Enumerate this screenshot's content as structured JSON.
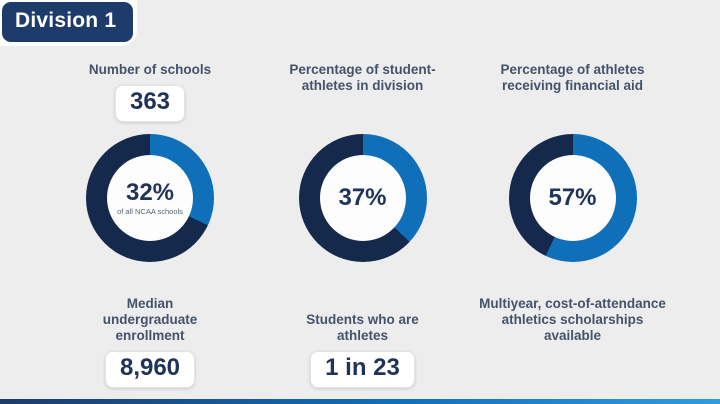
{
  "badge": {
    "label": "Division 1"
  },
  "colors": {
    "background": "#ededee",
    "badge_navy": "#1d3b6b",
    "donut_blue": "#0f6fb9",
    "donut_navy": "#15294d",
    "number_navy": "#203459",
    "label_slate": "#44536a",
    "footer_gradient": [
      "#1d3b6b",
      "#0f6fb9",
      "#2f9ce0"
    ]
  },
  "columns": [
    {
      "top_label": "Number of schools",
      "top_value": "363",
      "donut_percent": "32%",
      "donut_subtext": "of all NCAA schools",
      "bottom_label": "Median undergraduate enrollment",
      "bottom_value": "8,960"
    },
    {
      "top_label": "Percentage of student-athletes in division",
      "donut_percent": "37%",
      "bottom_label": "Students who are athletes",
      "bottom_value": "1 in 23"
    },
    {
      "top_label": "Percentage of athletes receiving financial aid",
      "donut_percent": "57%",
      "bottom_label": "Multiyear, cost-of-attendance athletics scholarships available"
    }
  ],
  "chart_data": [
    {
      "type": "pie",
      "subtype": "donut",
      "title": "Number of schools",
      "center_label": "32%",
      "center_sublabel": "of all NCAA schools",
      "labels": [
        "highlighted",
        "remainder"
      ],
      "values": [
        32,
        68
      ],
      "colors": [
        "#0f6fb9",
        "#15294d"
      ],
      "start_angle_deg": 0,
      "direction": "clockwise"
    },
    {
      "type": "pie",
      "subtype": "donut",
      "title": "Percentage of student-athletes in division",
      "center_label": "37%",
      "labels": [
        "highlighted",
        "remainder"
      ],
      "values": [
        37,
        63
      ],
      "colors": [
        "#0f6fb9",
        "#15294d"
      ],
      "start_angle_deg": 0,
      "direction": "clockwise"
    },
    {
      "type": "pie",
      "subtype": "donut",
      "title": "Percentage of athletes receiving financial aid",
      "center_label": "57%",
      "labels": [
        "highlighted",
        "remainder"
      ],
      "values": [
        57,
        43
      ],
      "colors": [
        "#0f6fb9",
        "#15294d"
      ],
      "start_angle_deg": 0,
      "direction": "clockwise"
    }
  ]
}
